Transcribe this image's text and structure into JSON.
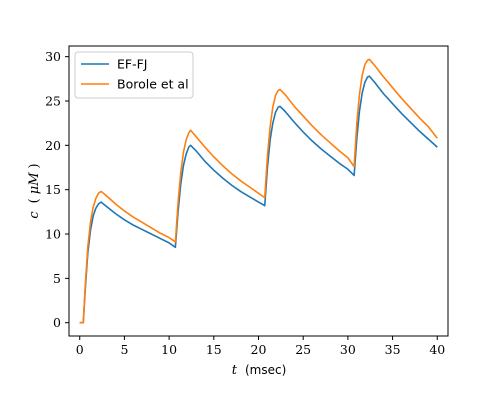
{
  "chart_data": {
    "type": "line",
    "title": "",
    "xlabel": {
      "var": "t",
      "unit": "(msec)"
    },
    "ylabel": {
      "var": "c",
      "unit": "μM"
    },
    "xlim": [
      -1.2,
      41.2
    ],
    "ylim": [
      -1.5,
      31.2
    ],
    "xticks": [
      0,
      5,
      10,
      15,
      20,
      25,
      30,
      35,
      40
    ],
    "yticks": [
      0,
      5,
      10,
      15,
      20,
      25,
      30
    ],
    "grid": false,
    "legend_position": "top-left",
    "series": [
      {
        "name": "EF-FJ",
        "color": "#1f77b4",
        "x": [
          0,
          0.4,
          0.6,
          0.9,
          1.2,
          1.5,
          1.8,
          2.1,
          2.4,
          3.0,
          4.0,
          5.0,
          6.0,
          7.0,
          8.0,
          9.0,
          10.0,
          10.7,
          11.0,
          11.3,
          11.6,
          11.9,
          12.2,
          12.4,
          13.0,
          14.0,
          15.0,
          16.0,
          17.0,
          18.0,
          19.0,
          20.0,
          20.7,
          21.0,
          21.3,
          21.6,
          21.9,
          22.2,
          22.4,
          23.0,
          24.0,
          25.0,
          26.0,
          27.0,
          28.0,
          29.0,
          30.0,
          30.7,
          31.0,
          31.3,
          31.6,
          31.9,
          32.2,
          32.4,
          33.0,
          34.0,
          35.0,
          36.0,
          37.0,
          38.0,
          39.0,
          40.0
        ],
        "values": [
          0,
          0,
          3.5,
          7.8,
          10.4,
          12.0,
          12.9,
          13.4,
          13.6,
          13.1,
          12.3,
          11.6,
          11.0,
          10.5,
          10.0,
          9.5,
          9.0,
          8.5,
          12.5,
          15.6,
          17.7,
          19.0,
          19.8,
          20.0,
          19.4,
          18.2,
          17.2,
          16.3,
          15.5,
          14.8,
          14.2,
          13.6,
          13.2,
          17.5,
          20.6,
          22.5,
          23.7,
          24.3,
          24.4,
          23.8,
          22.6,
          21.5,
          20.5,
          19.6,
          18.8,
          18.0,
          17.3,
          16.6,
          20.8,
          23.9,
          25.9,
          27.1,
          27.7,
          27.8,
          27.1,
          25.8,
          24.7,
          23.6,
          22.6,
          21.6,
          20.7,
          19.8
        ]
      },
      {
        "name": "Borole et al",
        "color": "#ff7f0e",
        "x": [
          0,
          0.4,
          0.6,
          0.9,
          1.2,
          1.5,
          1.8,
          2.1,
          2.4,
          3.0,
          4.0,
          5.0,
          6.0,
          7.0,
          8.0,
          9.0,
          10.0,
          10.7,
          11.0,
          11.3,
          11.6,
          11.9,
          12.2,
          12.4,
          13.0,
          14.0,
          15.0,
          16.0,
          17.0,
          18.0,
          19.0,
          20.0,
          20.7,
          21.0,
          21.3,
          21.6,
          21.9,
          22.2,
          22.4,
          23.0,
          24.0,
          25.0,
          26.0,
          27.0,
          28.0,
          29.0,
          30.0,
          30.7,
          31.0,
          31.3,
          31.6,
          31.9,
          32.2,
          32.4,
          33.0,
          34.0,
          35.0,
          36.0,
          37.0,
          38.0,
          39.0,
          40.0
        ],
        "values": [
          0,
          0,
          3.9,
          8.5,
          11.3,
          13.0,
          14.0,
          14.6,
          14.8,
          14.3,
          13.4,
          12.6,
          11.9,
          11.3,
          10.7,
          10.1,
          9.6,
          9.1,
          13.5,
          16.9,
          19.2,
          20.6,
          21.4,
          21.7,
          21.0,
          19.8,
          18.7,
          17.7,
          16.8,
          16.0,
          15.3,
          14.6,
          14.1,
          18.8,
          22.1,
          24.3,
          25.6,
          26.2,
          26.3,
          25.7,
          24.4,
          23.3,
          22.2,
          21.2,
          20.3,
          19.4,
          18.6,
          17.6,
          22.5,
          25.8,
          27.9,
          29.1,
          29.6,
          29.7,
          29.0,
          27.7,
          26.5,
          25.3,
          24.2,
          23.1,
          22.1,
          20.8
        ]
      }
    ]
  }
}
